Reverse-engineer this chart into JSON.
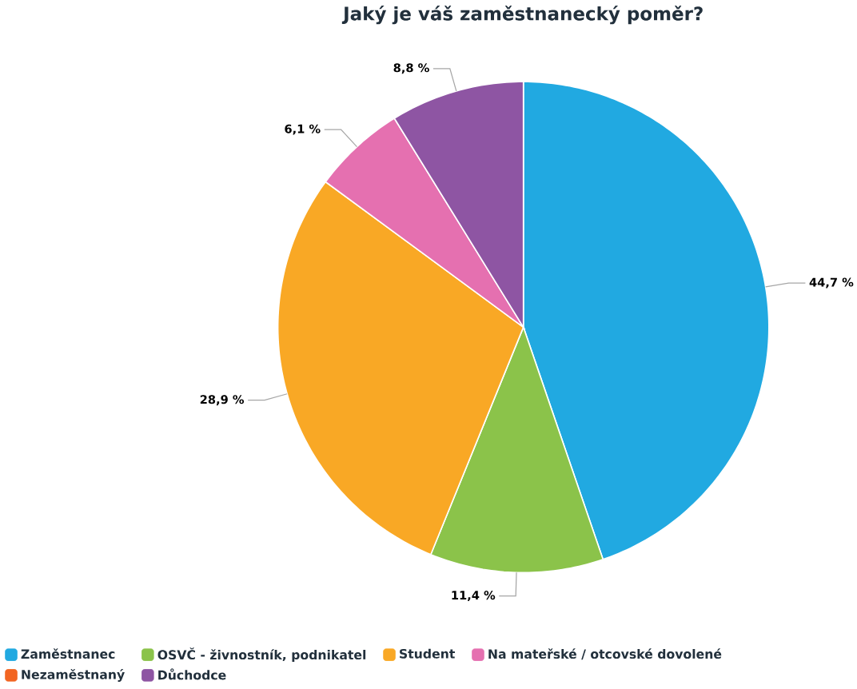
{
  "chart_data": {
    "type": "pie",
    "title": "Jaký je váš zaměstnanecký poměr?",
    "categories": [
      "Zaměstnanec",
      "OSVČ - živnostník, podnikatel",
      "Student",
      "Na mateřské / otcovské dovolené",
      "Nezaměstnaný",
      "Důchodce"
    ],
    "values": [
      44.7,
      11.4,
      28.9,
      6.1,
      0,
      8.8
    ],
    "value_labels": [
      "44,7 %",
      "11,4 %",
      "28,9 %",
      "6,1 %",
      null,
      "8,8 %"
    ],
    "colors": [
      "#21a9e1",
      "#8bc34a",
      "#f9a825",
      "#e570b0",
      "#f26522",
      "#8e55a3"
    ],
    "legend": "bottom"
  }
}
